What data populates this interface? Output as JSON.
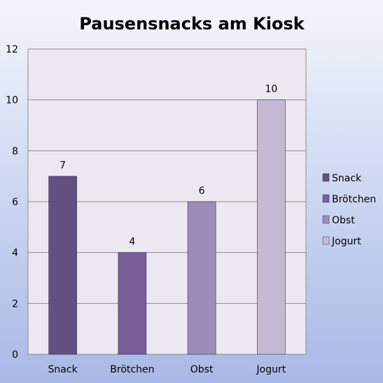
{
  "chart_data": {
    "type": "bar",
    "title": "Pausensnacks am Kiosk",
    "categories": [
      "Snack",
      "Brötchen",
      "Obst",
      "Jogurt"
    ],
    "values": [
      7,
      4,
      6,
      10
    ],
    "colors": [
      "#644f82",
      "#7a5e9b",
      "#9c8cb8",
      "#c4b8d2"
    ],
    "ylim": [
      0,
      12
    ],
    "yticks": [
      0,
      2,
      4,
      6,
      8,
      10,
      12
    ],
    "grid": true,
    "legend": "right",
    "legend_entries": [
      "Snack",
      "Brötchen",
      "Obst",
      "Jogurt"
    ]
  },
  "style": {
    "plot_bg": "#ece8f1",
    "grid_color": "#8c8c8c",
    "bar_stroke": "#3a3050"
  }
}
